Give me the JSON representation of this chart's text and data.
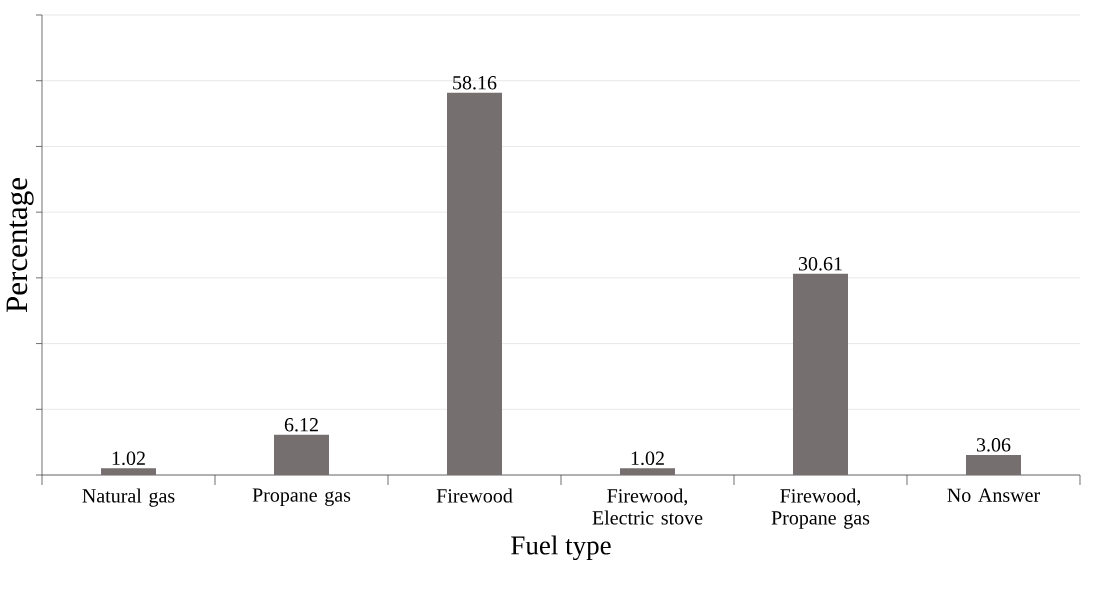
{
  "chart_data": {
    "type": "bar",
    "xlabel": "Fuel type",
    "ylabel": "Percentage",
    "categories": [
      "Natural gas",
      "Propane gas",
      "Firewood",
      "Firewood, Electric stove",
      "Firewood, Propane gas",
      "No Answer"
    ],
    "values": [
      1.02,
      6.12,
      58.16,
      1.02,
      30.61,
      3.06
    ],
    "color": "#756f6f",
    "ylim": [
      0,
      70
    ],
    "yticks": [
      {
        "value": 0,
        "label": null
      },
      {
        "value": 10,
        "label": null
      },
      {
        "value": 20,
        "label": null
      },
      {
        "value": 30,
        "label": null
      },
      {
        "value": 40,
        "label": null
      },
      {
        "value": 50,
        "label": null
      },
      {
        "value": 60,
        "label": null
      },
      {
        "value": 70,
        "label": null
      }
    ],
    "grid": "y",
    "tick_labels": "x",
    "data_labels": true
  }
}
